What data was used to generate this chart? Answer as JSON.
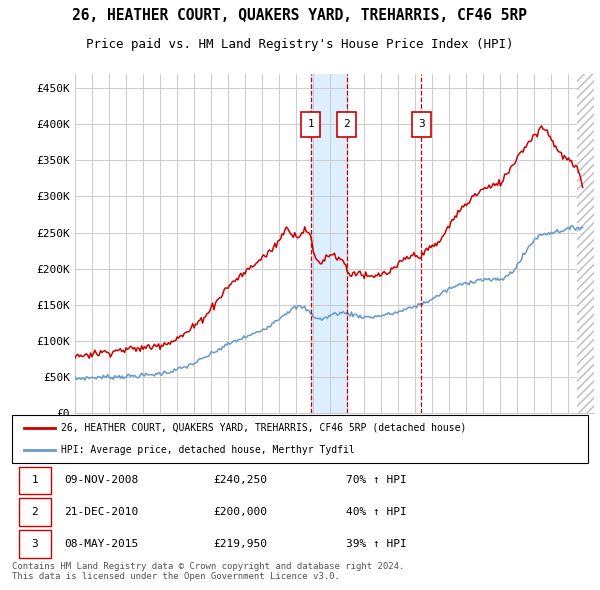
{
  "title": "26, HEATHER COURT, QUAKERS YARD, TREHARRIS, CF46 5RP",
  "subtitle": "Price paid vs. HM Land Registry's House Price Index (HPI)",
  "legend_label_red": "26, HEATHER COURT, QUAKERS YARD, TREHARRIS, CF46 5RP (detached house)",
  "legend_label_blue": "HPI: Average price, detached house, Merthyr Tydfil",
  "footer": "Contains HM Land Registry data © Crown copyright and database right 2024.\nThis data is licensed under the Open Government Licence v3.0.",
  "transactions": [
    {
      "num": 1,
      "date": "09-NOV-2008",
      "price": 240250,
      "hpi_pct": "70%",
      "direction": "↑"
    },
    {
      "num": 2,
      "date": "21-DEC-2010",
      "price": 200000,
      "hpi_pct": "40%",
      "direction": "↑"
    },
    {
      "num": 3,
      "date": "08-MAY-2015",
      "price": 219950,
      "hpi_pct": "39%",
      "direction": "↑"
    }
  ],
  "t1": 2008.86,
  "t2": 2010.97,
  "t3": 2015.36,
  "xlim": [
    1995.0,
    2025.5
  ],
  "ylim": [
    0,
    470000
  ],
  "yticks": [
    0,
    50000,
    100000,
    150000,
    200000,
    250000,
    300000,
    350000,
    400000,
    450000
  ],
  "ytick_labels": [
    "£0",
    "£50K",
    "£100K",
    "£150K",
    "£200K",
    "£250K",
    "£300K",
    "£350K",
    "£400K",
    "£450K"
  ],
  "red_color": "#cc0000",
  "blue_color": "#6699cc",
  "shade_color": "#ddeeff",
  "grid_color": "#cccccc",
  "marker_box_color": "#cc0000",
  "hpi_anchors": [
    [
      1995.0,
      47000
    ],
    [
      1997.0,
      50000
    ],
    [
      1999.0,
      52000
    ],
    [
      2001.0,
      60000
    ],
    [
      2002.5,
      75000
    ],
    [
      2004.0,
      95000
    ],
    [
      2005.0,
      105000
    ],
    [
      2006.0,
      115000
    ],
    [
      2007.5,
      140000
    ],
    [
      2008.5,
      145000
    ],
    [
      2009.0,
      135000
    ],
    [
      2009.5,
      130000
    ],
    [
      2010.0,
      135000
    ],
    [
      2011.0,
      138000
    ],
    [
      2012.0,
      133000
    ],
    [
      2013.0,
      135000
    ],
    [
      2014.0,
      140000
    ],
    [
      2015.0,
      148000
    ],
    [
      2016.0,
      158000
    ],
    [
      2017.0,
      172000
    ],
    [
      2018.0,
      180000
    ],
    [
      2019.0,
      185000
    ],
    [
      2020.0,
      185000
    ],
    [
      2021.0,
      205000
    ],
    [
      2022.0,
      240000
    ],
    [
      2023.0,
      250000
    ],
    [
      2024.0,
      255000
    ],
    [
      2024.9,
      257000
    ]
  ],
  "prop_anchors": [
    [
      1995.0,
      78000
    ],
    [
      1996.0,
      82000
    ],
    [
      1997.0,
      85000
    ],
    [
      1998.0,
      88000
    ],
    [
      1999.0,
      90000
    ],
    [
      2000.0,
      95000
    ],
    [
      2001.0,
      103000
    ],
    [
      2002.0,
      120000
    ],
    [
      2003.0,
      145000
    ],
    [
      2004.0,
      175000
    ],
    [
      2005.0,
      195000
    ],
    [
      2006.0,
      215000
    ],
    [
      2007.0,
      240000
    ],
    [
      2007.5,
      255000
    ],
    [
      2008.0,
      245000
    ],
    [
      2008.86,
      240250
    ],
    [
      2009.0,
      225000
    ],
    [
      2009.5,
      210000
    ],
    [
      2010.0,
      220000
    ],
    [
      2010.5,
      215000
    ],
    [
      2010.97,
      200000
    ],
    [
      2011.0,
      198000
    ],
    [
      2011.5,
      195000
    ],
    [
      2012.0,
      190000
    ],
    [
      2012.5,
      188000
    ],
    [
      2013.0,
      192000
    ],
    [
      2013.5,
      195000
    ],
    [
      2014.0,
      205000
    ],
    [
      2014.5,
      215000
    ],
    [
      2015.36,
      219950
    ],
    [
      2015.5,
      222000
    ],
    [
      2016.0,
      230000
    ],
    [
      2016.5,
      240000
    ],
    [
      2017.0,
      260000
    ],
    [
      2018.0,
      290000
    ],
    [
      2019.0,
      310000
    ],
    [
      2020.0,
      320000
    ],
    [
      2021.0,
      355000
    ],
    [
      2022.0,
      385000
    ],
    [
      2022.5,
      395000
    ],
    [
      2023.0,
      380000
    ],
    [
      2023.5,
      360000
    ],
    [
      2024.0,
      350000
    ],
    [
      2024.9,
      310000
    ]
  ]
}
